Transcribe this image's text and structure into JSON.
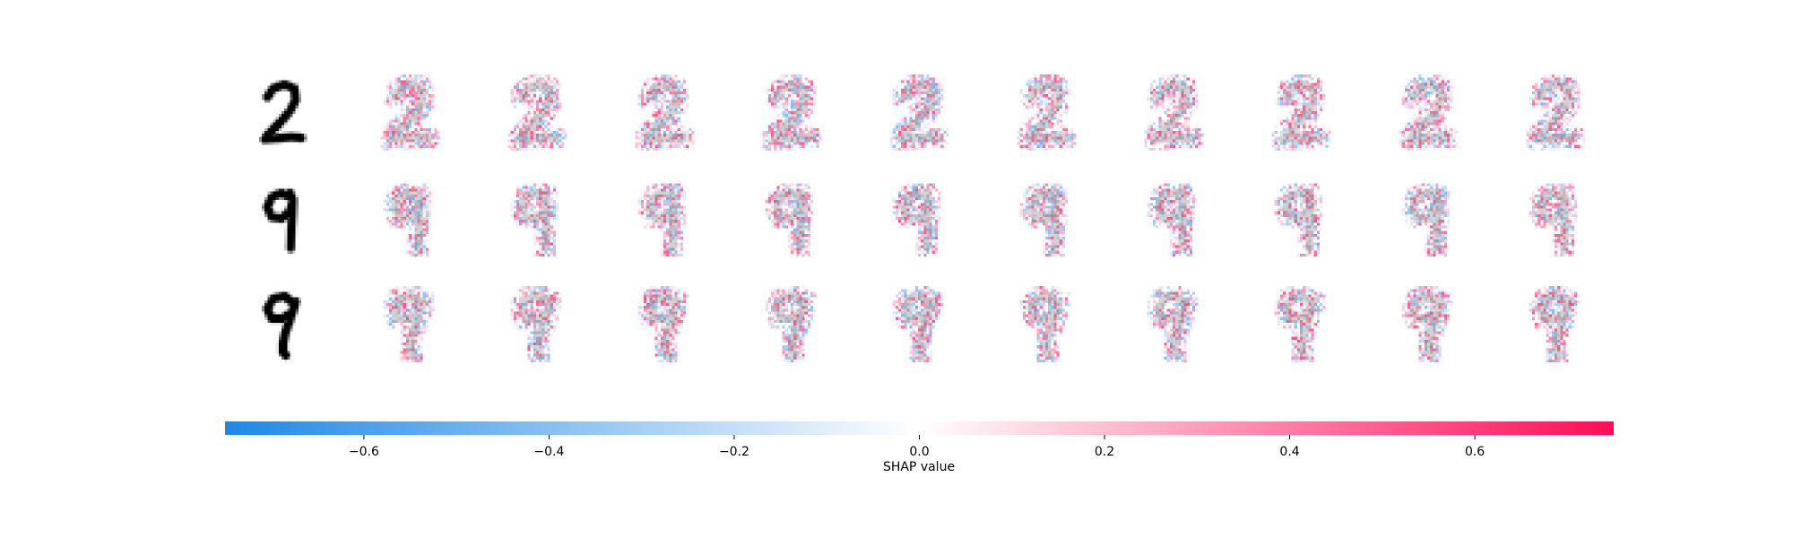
{
  "chart_data": {
    "type": "heatmap",
    "title": "",
    "rows": [
      {
        "digit": "2"
      },
      {
        "digit": "9"
      },
      {
        "digit": "9"
      }
    ],
    "explanation_columns": 10,
    "image_size": [
      28,
      28
    ],
    "colorbar": {
      "label": "SHAP value",
      "range": [
        -0.75,
        0.75
      ],
      "ticks": [
        -0.6,
        -0.4,
        -0.2,
        0.0,
        0.2,
        0.4,
        0.6
      ],
      "tick_labels": [
        "−0.6",
        "−0.4",
        "−0.2",
        "0.0",
        "0.2",
        "0.4",
        "0.6"
      ],
      "negative_color": "#1E88E5",
      "neutral_color": "#FFFFFF",
      "positive_color": "#FF0D57"
    }
  }
}
